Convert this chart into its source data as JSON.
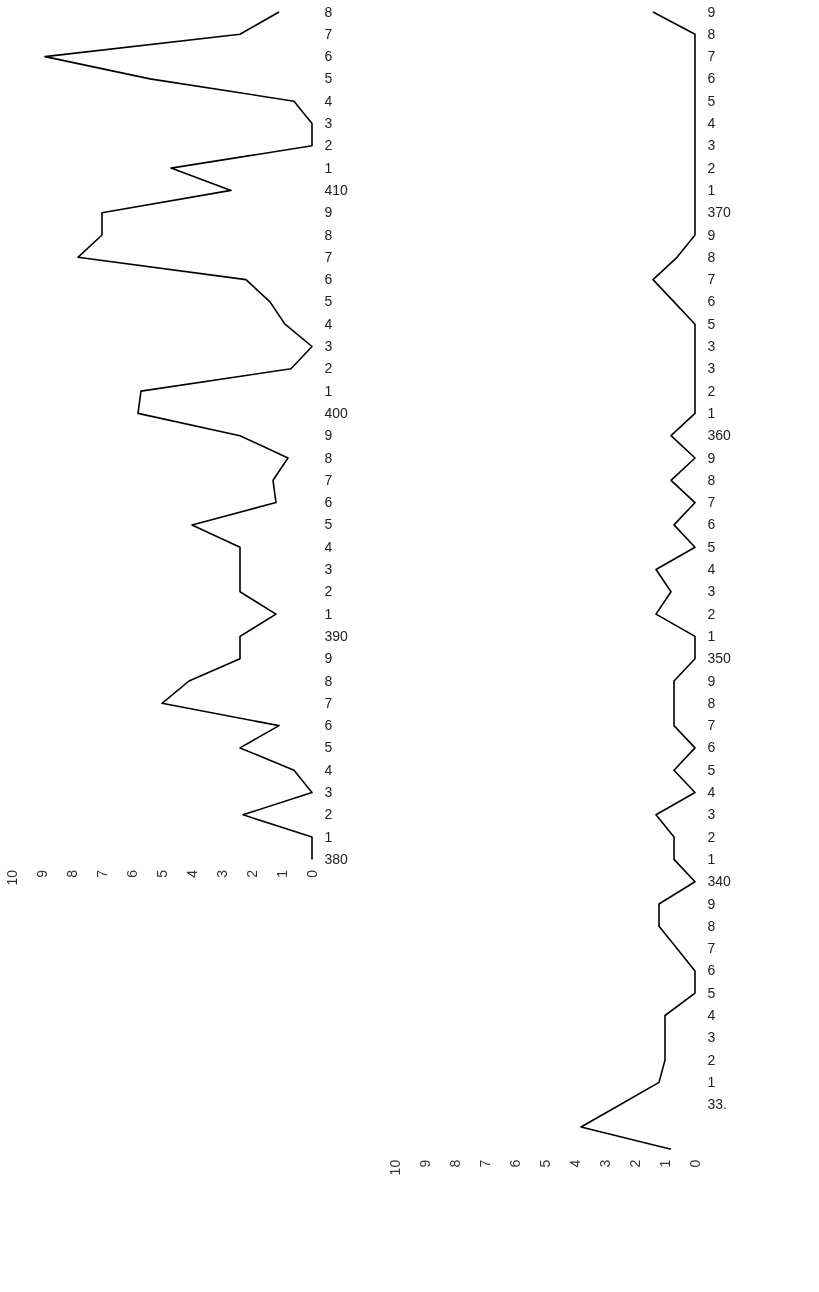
{
  "chart_data": [
    {
      "type": "line",
      "orientation": "horizontal",
      "categories": [
        "8",
        "7",
        "6",
        "5",
        "4",
        "3",
        "2",
        "1",
        "410",
        "9",
        "8",
        "7",
        "6",
        "5",
        "4",
        "3",
        "2",
        "1",
        "400",
        "9",
        "8",
        "7",
        "6",
        "5",
        "4",
        "3",
        "2",
        "1",
        "390",
        "9",
        "8",
        "7",
        "6",
        "5",
        "4",
        "3",
        "2",
        "1",
        "380"
      ],
      "series": [
        {
          "color": "#000000",
          "values": [
            1.1,
            2.4,
            8.9,
            5.4,
            0.6,
            0,
            0,
            4.7,
            2.7,
            7.0,
            7.0,
            7.8,
            2.2,
            1.4,
            0.9,
            0,
            0.7,
            5.7,
            5.8,
            2.4,
            0.8,
            1.3,
            1.2,
            4.0,
            2.4,
            2.4,
            2.4,
            1.2,
            2.4,
            2.4,
            4.1,
            5.0,
            1.1,
            2.4,
            0.6,
            0,
            2.3,
            0,
            0
          ]
        }
      ],
      "xlim": [
        10,
        0
      ],
      "xticks": [
        10,
        9,
        8,
        7,
        6,
        5,
        4,
        3,
        2,
        1,
        0
      ],
      "marker": "none",
      "line_style": "solid"
    },
    {
      "type": "line",
      "orientation": "horizontal",
      "categories": [
        "9",
        "8",
        "7",
        "6",
        "5",
        "4",
        "3",
        "2",
        "1",
        "370",
        "9",
        "8",
        "7",
        "6",
        "5",
        "3",
        "3",
        "2",
        "1",
        "360",
        "9",
        "8",
        "7",
        "6",
        "5",
        "4",
        "3",
        "2",
        "1",
        "350",
        "9",
        "8",
        "7",
        "6",
        "5",
        "4",
        "3",
        "2",
        "1",
        "340",
        "9",
        "8",
        "7",
        "6",
        "5",
        "4",
        "3",
        "2",
        "1",
        "33.",
        null,
        null
      ],
      "series": [
        {
          "color": "#000000",
          "values": [
            1.4,
            0,
            0,
            0,
            0,
            0,
            0,
            0,
            0,
            0,
            0,
            0.6,
            1.4,
            0.7,
            0,
            0,
            0,
            0,
            0,
            0.8,
            0,
            0.8,
            0,
            0.7,
            0,
            1.3,
            0.8,
            1.3,
            0,
            0,
            0.7,
            0.7,
            0.7,
            0,
            0.7,
            0,
            1.3,
            0.7,
            0.7,
            0,
            1.2,
            1.2,
            0.6,
            0,
            0,
            1.0,
            1.0,
            1.0,
            1.2,
            2.5,
            3.8,
            0.8
          ]
        }
      ],
      "xlim": [
        10,
        0
      ],
      "xticks": [
        10,
        9,
        8,
        7,
        6,
        5,
        4,
        3,
        2,
        1,
        0
      ],
      "marker": "none",
      "line_style": "solid"
    }
  ]
}
